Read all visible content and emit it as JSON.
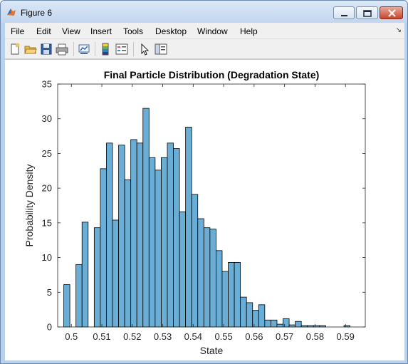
{
  "window": {
    "title": "Figure 6",
    "icon": "matlab-icon",
    "controls": [
      "minimize-icon",
      "maximize-icon",
      "close-icon"
    ]
  },
  "menu": {
    "items": [
      "File",
      "Edit",
      "View",
      "Insert",
      "Tools",
      "Desktop",
      "Window",
      "Help"
    ],
    "dock_arrow": "↘"
  },
  "toolbar": {
    "icons": [
      "new-figure-icon",
      "open-folder-icon",
      "save-icon",
      "print-icon",
      "link-plot-icon",
      "colorbar-icon",
      "legend-icon",
      "pointer-icon",
      "property-editor-icon"
    ]
  },
  "colors": {
    "bar_fill": "#6aaed6",
    "bar_edge": "#000000",
    "window_chrome": "#b9d1ea"
  },
  "chart_data": {
    "type": "bar",
    "title": "Final Particle Distribution (Degradation State)",
    "xlabel": "State",
    "ylabel": "Probability Density",
    "xlim": [
      0.4955,
      0.5965
    ],
    "ylim": [
      0,
      35
    ],
    "xticks": [
      0.5,
      0.51,
      0.52,
      0.53,
      0.54,
      0.55,
      0.56,
      0.57,
      0.58,
      0.59
    ],
    "xtick_labels": [
      "0.5",
      "0.51",
      "0.52",
      "0.53",
      "0.54",
      "0.55",
      "0.56",
      "0.57",
      "0.58",
      "0.59"
    ],
    "yticks": [
      0,
      5,
      10,
      15,
      20,
      25,
      30,
      35
    ],
    "ytick_labels": [
      "0",
      "5",
      "10",
      "15",
      "20",
      "25",
      "30",
      "35"
    ],
    "grid": false,
    "bin_width": 0.002,
    "bin_starts": [
      0.4955,
      0.4975,
      0.4995,
      0.5015,
      0.5035,
      0.5055,
      0.5075,
      0.5095,
      0.5115,
      0.5135,
      0.5155,
      0.5175,
      0.5195,
      0.5215,
      0.5235,
      0.5255,
      0.5275,
      0.5295,
      0.5315,
      0.5335,
      0.5355,
      0.5375,
      0.5395,
      0.5415,
      0.5435,
      0.5455,
      0.5475,
      0.5495,
      0.5515,
      0.5535,
      0.5555,
      0.5575,
      0.5595,
      0.5615,
      0.5635,
      0.5655,
      0.5675,
      0.5695,
      0.5715,
      0.5735,
      0.5755,
      0.5775,
      0.5795,
      0.5815,
      0.5835,
      0.5855,
      0.5875,
      0.5895
    ],
    "values": [
      0,
      6.1,
      0,
      9.0,
      15.1,
      0,
      14.3,
      22.8,
      26.5,
      15.4,
      26.2,
      21.2,
      27.0,
      26.5,
      31.5,
      24.4,
      22.6,
      24.4,
      26.5,
      25.7,
      16.6,
      28.8,
      19.1,
      15.6,
      14.3,
      14.1,
      11.0,
      8.0,
      9.3,
      9.3,
      4.3,
      3.5,
      2.4,
      3.2,
      1.0,
      1.0,
      0.4,
      1.2,
      0.3,
      0.8,
      0.2,
      0.2,
      0.2,
      0.2,
      0,
      0,
      0,
      0.2
    ]
  }
}
